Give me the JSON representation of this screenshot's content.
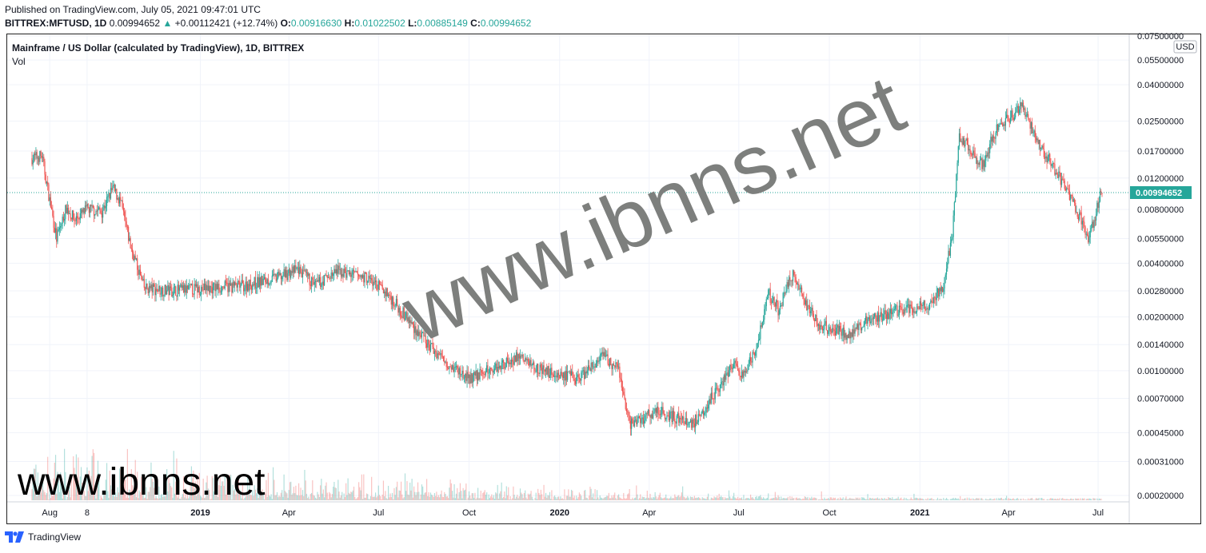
{
  "header": {
    "published": "Published on TradingView.com, July 05, 2021 09:47:01 UTC",
    "symbol_line": "BITTREX:MFTUSD, 1D",
    "last": "0.00994652",
    "change": "+0.00112421 (+12.74%)",
    "o_label": "O:",
    "o": "0.00916630",
    "h_label": "H:",
    "h": "0.01022502",
    "l_label": "L:",
    "l": "0.00885149",
    "c_label": "C:",
    "c": "0.00994652"
  },
  "pane": {
    "title": "Mainframe / US Dollar (calculated by TradingView), 1D, BITTREX",
    "volume_label": "Vol",
    "currency": "USD"
  },
  "watermark": {
    "large": "www.ibnns.net",
    "small": "www.ibnns.net"
  },
  "footer": {
    "brand": "TradingView"
  },
  "colors": {
    "up": "#26a69a",
    "down": "#ef5350",
    "grid": "#f0f3fa",
    "price_tag": "#26a69a"
  },
  "chart_data": {
    "type": "candlestick",
    "scale": "log",
    "y_ticks": [
      "0.07500000",
      "0.05500000",
      "0.04000000",
      "0.02500000",
      "0.01700000",
      "0.01200000",
      "0.00800000",
      "0.00550000",
      "0.00400000",
      "0.00280000",
      "0.00200000",
      "0.00140000",
      "0.00100000",
      "0.00070000",
      "0.00045000",
      "0.00031000",
      "0.00020000"
    ],
    "x_ticks": [
      "Aug",
      "8",
      "2019",
      "Apr",
      "Jul",
      "Oct",
      "2020",
      "Apr",
      "Jul",
      "Oct",
      "2021",
      "Apr",
      "Jul"
    ],
    "x_ticks_bold": [
      "2019",
      "2020",
      "2021"
    ],
    "last_price": "0.00994652",
    "trend_close": [
      [
        "2018-07-14",
        0.0155
      ],
      [
        "2018-07-24",
        0.016
      ],
      [
        "2018-08-01",
        0.009
      ],
      [
        "2018-08-08",
        0.0055
      ],
      [
        "2018-08-18",
        0.0082
      ],
      [
        "2018-08-26",
        0.007
      ],
      [
        "2018-09-08",
        0.008
      ],
      [
        "2018-09-23",
        0.0078
      ],
      [
        "2018-10-04",
        0.0105
      ],
      [
        "2018-10-12",
        0.0088
      ],
      [
        "2018-10-22",
        0.005
      ],
      [
        "2018-11-05",
        0.0029
      ],
      [
        "2018-12-01",
        0.0028
      ],
      [
        "2019-01-10",
        0.0029
      ],
      [
        "2019-02-15",
        0.003
      ],
      [
        "2019-03-20",
        0.0033
      ],
      [
        "2019-04-10",
        0.0037
      ],
      [
        "2019-04-28",
        0.003
      ],
      [
        "2019-05-20",
        0.0036
      ],
      [
        "2019-06-20",
        0.0033
      ],
      [
        "2019-07-10",
        0.0027
      ],
      [
        "2019-08-01",
        0.0019
      ],
      [
        "2019-08-20",
        0.0014
      ],
      [
        "2019-09-10",
        0.0011
      ],
      [
        "2019-10-01",
        0.0009
      ],
      [
        "2019-10-20",
        0.001
      ],
      [
        "2019-11-20",
        0.0012
      ],
      [
        "2019-12-15",
        0.001
      ],
      [
        "2020-01-20",
        0.0009
      ],
      [
        "2020-02-15",
        0.0012
      ],
      [
        "2020-03-01",
        0.001
      ],
      [
        "2020-03-12",
        0.0005
      ],
      [
        "2020-04-10",
        0.0006
      ],
      [
        "2020-05-15",
        0.0005
      ],
      [
        "2020-06-10",
        0.0008
      ],
      [
        "2020-06-25",
        0.0011
      ],
      [
        "2020-07-05",
        0.0009
      ],
      [
        "2020-07-20",
        0.0014
      ],
      [
        "2020-07-31",
        0.0027
      ],
      [
        "2020-08-10",
        0.0022
      ],
      [
        "2020-08-25",
        0.0035
      ],
      [
        "2020-09-05",
        0.0025
      ],
      [
        "2020-09-20",
        0.0018
      ],
      [
        "2020-10-20",
        0.0016
      ],
      [
        "2020-11-15",
        0.002
      ],
      [
        "2020-12-15",
        0.0022
      ],
      [
        "2021-01-10",
        0.0023
      ],
      [
        "2021-01-25",
        0.003
      ],
      [
        "2021-02-03",
        0.006
      ],
      [
        "2021-02-10",
        0.02
      ],
      [
        "2021-02-20",
        0.018
      ],
      [
        "2021-03-05",
        0.014
      ],
      [
        "2021-03-20",
        0.023
      ],
      [
        "2021-04-05",
        0.027
      ],
      [
        "2021-04-15",
        0.031
      ],
      [
        "2021-05-01",
        0.019
      ],
      [
        "2021-05-20",
        0.013
      ],
      [
        "2021-06-05",
        0.009
      ],
      [
        "2021-06-22",
        0.0055
      ],
      [
        "2021-07-04",
        0.0099
      ]
    ]
  }
}
